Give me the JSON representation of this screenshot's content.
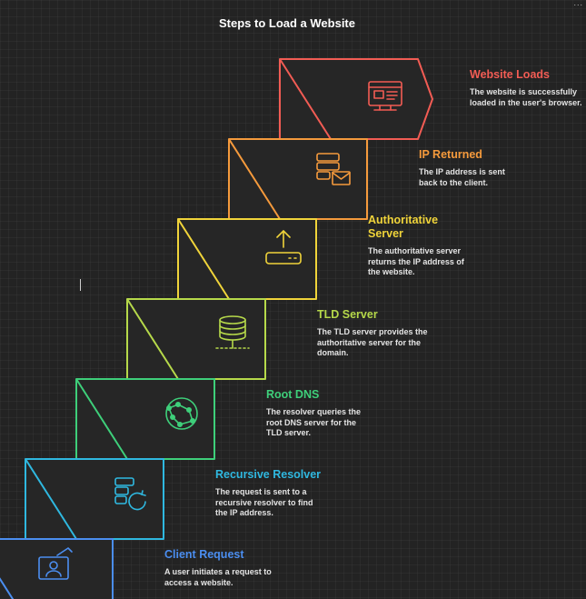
{
  "title": "Steps to Load a Website",
  "corner_mark": "...",
  "steps": [
    {
      "id": "website-loads",
      "title": "Website Loads",
      "description": "The website is successfully loaded in the user's browser.",
      "color": "#f25c54",
      "icon": "browser-window-icon"
    },
    {
      "id": "ip-returned",
      "title": "IP Returned",
      "description": "The IP address is sent back to the client.",
      "color": "#f59a3c",
      "icon": "server-envelope-icon"
    },
    {
      "id": "authoritative-server",
      "title": "Authoritative Server",
      "description": "The authoritative server returns the IP address of the website.",
      "color": "#f0d43a",
      "icon": "upload-drive-icon"
    },
    {
      "id": "tld-server",
      "title": "TLD Server",
      "description": "The TLD server provides the authoritative server for the domain.",
      "color": "#b6d94a",
      "icon": "database-network-icon"
    },
    {
      "id": "root-dns",
      "title": "Root DNS",
      "description": "The resolver queries the root DNS server for the TLD server.",
      "color": "#3ecf7a",
      "icon": "globe-network-icon"
    },
    {
      "id": "recursive-resolver",
      "title": "Recursive Resolver",
      "description": "The request is sent to a recursive resolver to find the IP address.",
      "color": "#2fb8e0",
      "icon": "server-refresh-icon"
    },
    {
      "id": "client-request",
      "title": "Client Request",
      "description": "A user initiates a request to access a website.",
      "color": "#4b8ef0",
      "icon": "user-screen-icon"
    }
  ]
}
